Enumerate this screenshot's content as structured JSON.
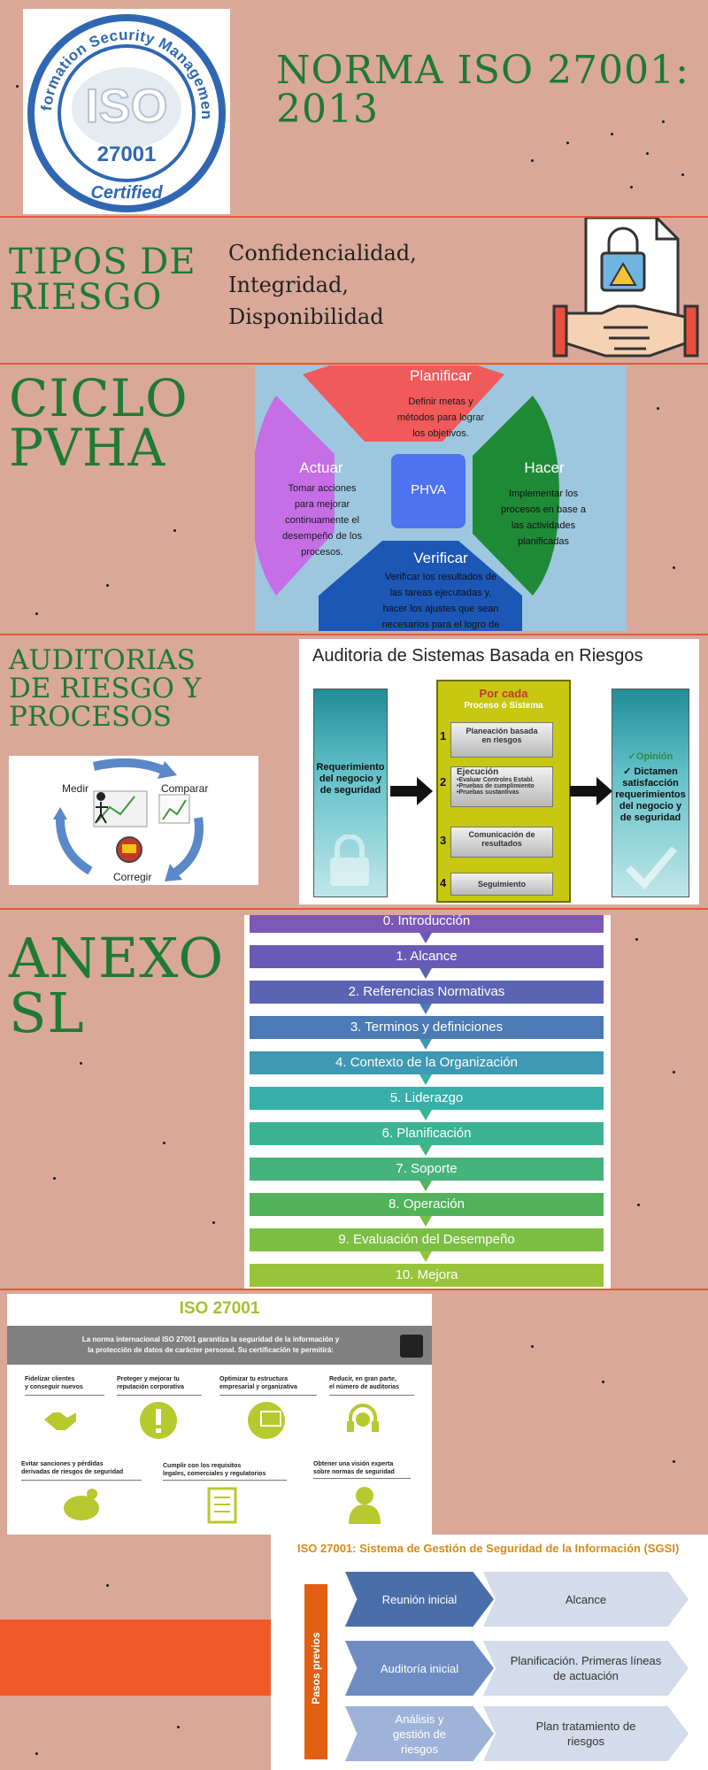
{
  "colors": {
    "background": "#d9a898",
    "heading_green": "#1f7a33",
    "divider": "#e05a38"
  },
  "logo": {
    "ring_text": "Information Security Management",
    "iso": "ISO",
    "code": "27001",
    "certified": "Certified"
  },
  "title": {
    "line1": "NORMA ISO 27001:",
    "line2": "2013"
  },
  "risk": {
    "heading_line1": "TIPOS DE",
    "heading_line2": "RIESGO",
    "text_line1": "Confidencialidad, Integridad,",
    "text_line2": "Disponibilidad"
  },
  "cycle_section": {
    "heading_line1": "CICLO",
    "heading_line2": "PVHA",
    "center": "PHVA",
    "planificar": {
      "title": "Planificar",
      "lines": [
        "Definir metas y",
        "métodos para lograr",
        "los objetivos."
      ]
    },
    "hacer": {
      "title": "Hacer",
      "lines": [
        "Implementar los",
        "procesos en base a",
        "las actividades",
        "planificadas"
      ]
    },
    "verificar": {
      "title": "Verificar",
      "lines": [
        "Verificar los resultados de",
        "las tareas ejecutadas y,",
        "hacer los ajustes que sean",
        "necesarios para el logro de"
      ]
    },
    "actuar": {
      "title": "Actuar",
      "lines": [
        "Tomar acciones",
        "para mejorar",
        "continuamente el",
        "desempeño de los",
        "procesos."
      ]
    }
  },
  "audit_section": {
    "heading_line1": "AUDITORIAS",
    "heading_line2": "DE RIESGO Y",
    "heading_line3": "PROCESOS",
    "panel_title": "Auditoria de Sistemas Basada en Riesgos",
    "left_box": [
      "Requerimiento",
      "del negocio y",
      "de seguridad"
    ],
    "por_cada": "Por cada",
    "proceso": "Proceso  ó  Sistema",
    "steps": [
      {
        "n": "1",
        "lines": [
          "Planeación basada",
          "en riesgos"
        ]
      },
      {
        "n": "2",
        "lines": [
          "Ejecución",
          "•Evaluar Controles Establ.",
          "•Pruebas de cumplimiento",
          "•Pruebas sustantivas"
        ]
      },
      {
        "n": "3",
        "lines": [
          "Comunicación de",
          "resultados"
        ]
      },
      {
        "n": "4",
        "lines": [
          "Seguimiento"
        ]
      }
    ],
    "right_box": [
      "✓Opinión",
      "✓ Dictamen",
      "satisfacción",
      "requerimientos",
      "del negocio y",
      "de seguridad"
    ],
    "cycle_labels": {
      "medir": "Medir",
      "comparar": "Comparar",
      "corregir": "Corregir"
    }
  },
  "anexo": {
    "heading_line1": "ANEXO",
    "heading_line2": "SL",
    "items": [
      "0. Introducción",
      "1. Alcance",
      "2. Referencias Normativas",
      "3. Terminos y definiciones",
      "4. Contexto de la Organización",
      "5. Liderazgo",
      "6. Planificación",
      "7. Soporte",
      "8. Operación",
      "9. Evaluación del Desempeño",
      "10. Mejora"
    ],
    "item_colors": [
      "#7c58b8",
      "#6a5ab8",
      "#5b63b4",
      "#4c7ab4",
      "#3f98b4",
      "#36b0a8",
      "#3cb392",
      "#46b37a",
      "#52b35a",
      "#7cbe44",
      "#98c43a"
    ]
  },
  "iso_card": {
    "title": "ISO 27001",
    "intro_line1": "La norma internacional ISO 27001 garantiza la seguridad de la información y",
    "intro_line2": "la protección de datos de carácter personal. Su certificación te permitirá:",
    "benefits_row1": [
      [
        "Fidelizar clientes",
        "y conseguir nuevos"
      ],
      [
        "Proteger y mejorar tu",
        "reputación corporativa"
      ],
      [
        "Optimizar tu estructura",
        "empresarial y organizativa"
      ],
      [
        "Reducir, en gran parte,",
        "el número de auditorias"
      ]
    ],
    "benefits_row2": [
      [
        "Evitar sanciones y pérdidas",
        "derivadas de riesgos de seguridad"
      ],
      [
        "Cumplir con los requisitos",
        "legales, comerciales y regulatorios"
      ],
      [
        "Obtener una visión experta",
        "sobre normas de seguridad"
      ]
    ]
  },
  "sgsi": {
    "title": "ISO 27001: Sistema de Gestión de Seguridad de la Información (SGSI)",
    "pasos": "Pasos previos",
    "rows": [
      {
        "left": "Reunión inicial",
        "right": "Alcance"
      },
      {
        "left": "Auditoría inicial",
        "right": "Planificación. Primeras líneas de actuación"
      },
      {
        "left": "Análisis y gestión de riesgos",
        "right": "Plan tratamiento de riesgos"
      }
    ],
    "left_colors": [
      "#4a6fa8",
      "#6f8cc2",
      "#9fb3d8"
    ]
  }
}
